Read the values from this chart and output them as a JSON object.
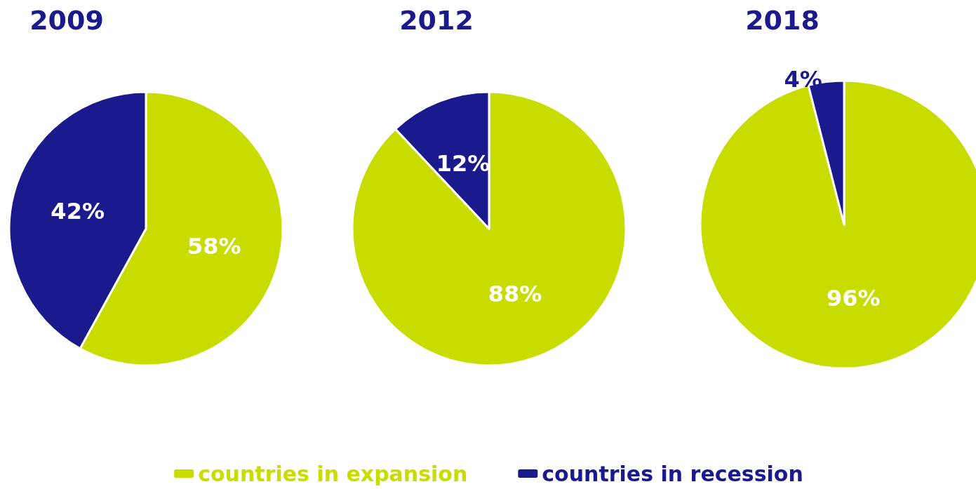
{
  "chart_data": {
    "type": "pie",
    "categories": [
      "countries in expansion",
      "countries in recession"
    ],
    "colors": [
      "#c8dc00",
      "#1a1a8c"
    ],
    "legend": "bottom",
    "series": [
      {
        "name": "2009",
        "values": [
          58,
          42
        ],
        "value_labels": [
          "58%",
          "42%"
        ]
      },
      {
        "name": "2012",
        "values": [
          88,
          12
        ],
        "value_labels": [
          "88%",
          "12%"
        ]
      },
      {
        "name": "2018",
        "values": [
          96,
          4
        ],
        "value_labels": [
          "96%",
          "4%"
        ]
      }
    ]
  }
}
